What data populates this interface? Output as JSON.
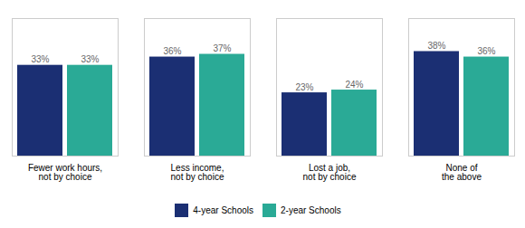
{
  "chart_data": {
    "type": "bar",
    "categories": [
      "Fewer work hours,\nnot by choice",
      "Less income,\nnot by choice",
      "Lost a job,\nnot by choice",
      "None of\nthe above"
    ],
    "series": [
      {
        "name": "4-year Schools",
        "color": "#1b2f73",
        "values": [
          33,
          36,
          23,
          38
        ],
        "value_labels": [
          "33%",
          "36%",
          "23%",
          "38%"
        ]
      },
      {
        "name": "2-year Schools",
        "color": "#2aaa96",
        "values": [
          33,
          37,
          24,
          36
        ],
        "value_labels": [
          "33%",
          "37%",
          "24%",
          "36%"
        ]
      }
    ],
    "ylim": [
      0,
      50
    ],
    "data_labels": true,
    "tick_labels": "x",
    "grid": false,
    "legend": "bottom"
  }
}
